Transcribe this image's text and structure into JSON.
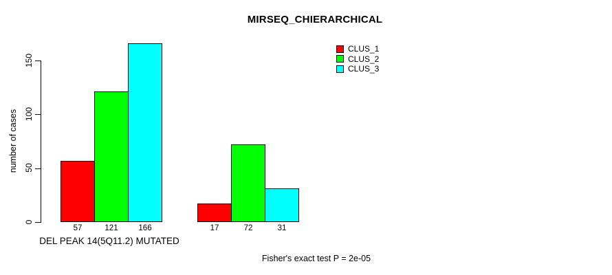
{
  "chart_data": {
    "type": "bar",
    "title": "MIRSEQ_CHIERARCHICAL",
    "ylabel": "number of cases",
    "xlabel": "DEL PEAK 14(5Q11.2) MUTATED",
    "footnote": "Fisher's exact test P = 2e-05",
    "group_labels": [
      "DEL PEAK 14(5Q11.2) MUTATED",
      ""
    ],
    "series": [
      {
        "name": "CLUS_1",
        "color": "#FF0000",
        "values": [
          57,
          17
        ]
      },
      {
        "name": "CLUS_2",
        "color": "#00FF00",
        "values": [
          121,
          72
        ]
      },
      {
        "name": "CLUS_3",
        "color": "#00FFFF",
        "values": [
          166,
          31
        ]
      }
    ],
    "yticks": [
      0,
      50,
      100,
      150
    ],
    "ylim": [
      0,
      166
    ],
    "bar_value_labels_shown": true,
    "legend": {
      "position": "top-right",
      "entries": [
        "CLUS_1",
        "CLUS_2",
        "CLUS_3"
      ]
    },
    "grid": false,
    "background_color": "#FFFFFF",
    "bar_border_color": "#000000"
  }
}
